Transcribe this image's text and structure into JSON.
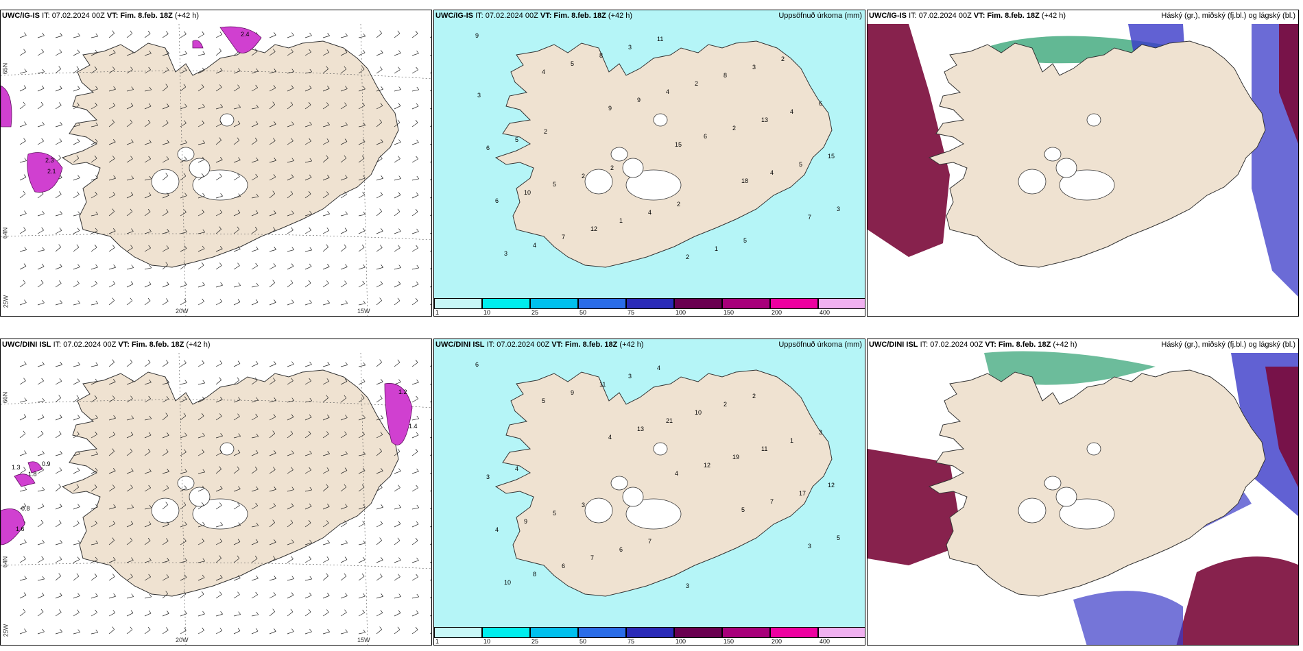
{
  "panels": [
    {
      "id": "ig-wind",
      "model": "UWC/IG-IS",
      "it": "IT: 07.02.2024 00Z",
      "vt_label": "VT:",
      "vt": "Fim. 8.feb. 18Z",
      "lead": "(+42 h)",
      "right": "",
      "lon": [
        "20W",
        "15W"
      ],
      "lat": [
        "65N",
        "64N",
        "25W"
      ]
    },
    {
      "id": "ig-precip",
      "model": "UWC/IG-IS",
      "it": "IT: 07.02.2024 00Z",
      "vt_label": "VT:",
      "vt": "Fim. 8.feb. 18Z",
      "lead": "(+42 h)",
      "right": "Uppsöfnuð úrkoma (mm)"
    },
    {
      "id": "ig-cloud",
      "model": "UWC/IG-IS",
      "it": "IT: 07.02.2024 00Z",
      "vt_label": "VT:",
      "vt": "Fim. 8.feb. 18Z",
      "lead": "(+42 h)",
      "right": "Háský (gr.), miðský (fj.bl.) og lágský (bl.)"
    },
    {
      "id": "dini-wind",
      "model": "UWC/DINI ISL",
      "it": "IT: 07.02.2024 00Z",
      "vt_label": "VT:",
      "vt": "Fim. 8.feb. 18Z",
      "lead": "(+42 h)",
      "right": "",
      "lon": [
        "20W",
        "15W"
      ],
      "lat": [
        "66N",
        "64N",
        "25W"
      ]
    },
    {
      "id": "dini-precip",
      "model": "UWC/DINI ISL",
      "it": "IT: 07.02.2024 00Z",
      "vt_label": "VT:",
      "vt": "Fim. 8.feb. 18Z",
      "lead": "(+42 h)",
      "right": "Uppsöfnuð úrkoma (mm)"
    },
    {
      "id": "dini-cloud",
      "model": "UWC/DINI ISL",
      "it": "IT: 07.02.2024 00Z",
      "vt_label": "VT:",
      "vt": "Fim. 8.feb. 18Z",
      "lead": "(+42 h)",
      "right": "Háský (gr.), miðský (fj.bl.) og lágský (bl.)"
    }
  ],
  "colorbar": {
    "labels": [
      "1",
      "10",
      "25",
      "50",
      "75",
      "100",
      "150",
      "200",
      "400"
    ],
    "colors": [
      "#c8f7f7",
      "#00eeee",
      "#00c0ee",
      "#2a6ce8",
      "#2a2ab8",
      "#6a0050",
      "#a8007a",
      "#ee00a0",
      "#f0b0f0"
    ]
  },
  "colors": {
    "land": "#efe2d1",
    "precip_light": "#b5f5f7",
    "ice": "#ffffff",
    "gust": "#d040d0",
    "cloud_low": "#3a3ac8",
    "cloud_mid": "#7a0a3a",
    "cloud_high": "#2ea070"
  },
  "wind_gust_labels": [
    "2.3",
    "2.4",
    "2.1",
    "1.8",
    "0.8",
    "1.2",
    "1.4",
    "1.6",
    "1.3",
    "0.9"
  ],
  "precip_values_ig": [
    "9",
    "4",
    "9",
    "15",
    "18",
    "7",
    "3",
    "5",
    "9",
    "6",
    "4",
    "3",
    "4",
    "8",
    "4",
    "2",
    "5",
    "6",
    "7",
    "3",
    "2",
    "13",
    "15",
    "10",
    "12",
    "11",
    "8",
    "4",
    "6",
    "5",
    "1",
    "2",
    "3",
    "6",
    "5",
    "2",
    "4",
    "1",
    "2",
    "3",
    "2",
    "2",
    "2",
    "5"
  ],
  "precip_values_dini": [
    "6",
    "5",
    "4",
    "4",
    "5",
    "3",
    "10",
    "9",
    "13",
    "12",
    "7",
    "5",
    "8",
    "11",
    "21",
    "19",
    "17",
    "4",
    "6",
    "3",
    "10",
    "11",
    "12",
    "9",
    "7",
    "4",
    "2",
    "1",
    "3",
    "5",
    "6",
    "3",
    "2",
    "3",
    "4",
    "3",
    "7"
  ]
}
